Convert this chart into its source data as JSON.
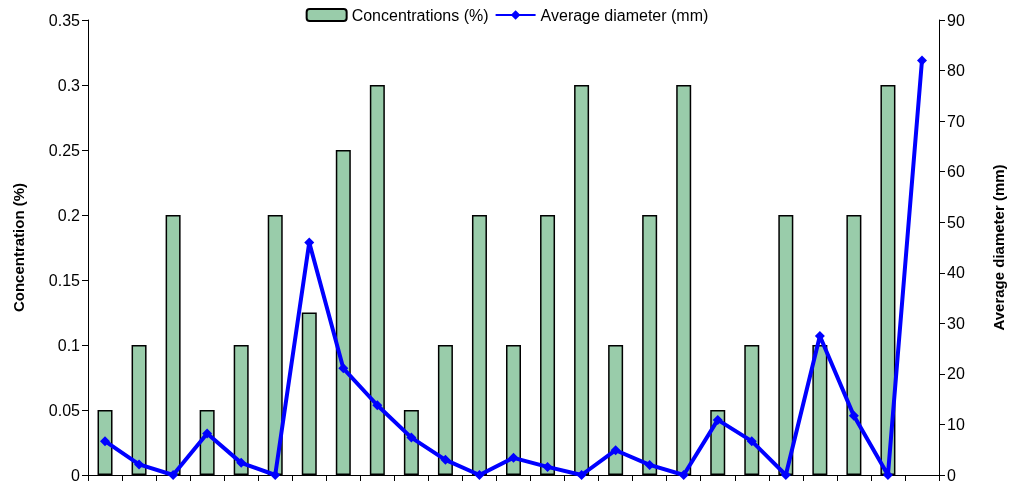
{
  "chart_data": {
    "type": "bar",
    "ylabel": "Concentration (%)",
    "y2label": "Average diameter (mm)",
    "categories": [
      null,
      null,
      null,
      null,
      null,
      null,
      null,
      null,
      null,
      null,
      null,
      null,
      null,
      null,
      null,
      null,
      null,
      null,
      null,
      null,
      null,
      null,
      null,
      null,
      null
    ],
    "series": [
      {
        "name": "Concentrations (%)",
        "color": "#99ccaa",
        "values": [
          0.05,
          0.1,
          0.2,
          0.05,
          0.1,
          0.2,
          0.125,
          0.25,
          0.3,
          0.05,
          0.1,
          0.2,
          0.1,
          0.2,
          0.3,
          0.1,
          0.2,
          0.3,
          0.05,
          0.1,
          0.2,
          0.1,
          0.2,
          0.3,
          null
        ]
      },
      {
        "name": "Average diameter (mm)",
        "type": "line",
        "axis": "y2",
        "color": "#0000ff",
        "marker": "diamond",
        "values": [
          6.7,
          2.1,
          0,
          8.2,
          2.4,
          0,
          46,
          21.1,
          13.8,
          7.4,
          3.0,
          0,
          3.4,
          1.6,
          0,
          4.9,
          2.0,
          0,
          10.9,
          6.7,
          0,
          27.5,
          11.7,
          0,
          82
        ]
      }
    ],
    "ylim": [
      0,
      0.35
    ],
    "yticks": [
      0,
      0.05,
      0.1,
      0.15,
      0.2,
      0.25,
      0.3,
      0.35
    ],
    "y2lim": [
      0,
      90
    ],
    "y2ticks": [
      0,
      10,
      20,
      30,
      40,
      50,
      60,
      70,
      80,
      90
    ],
    "grid": false,
    "legend": "top"
  }
}
